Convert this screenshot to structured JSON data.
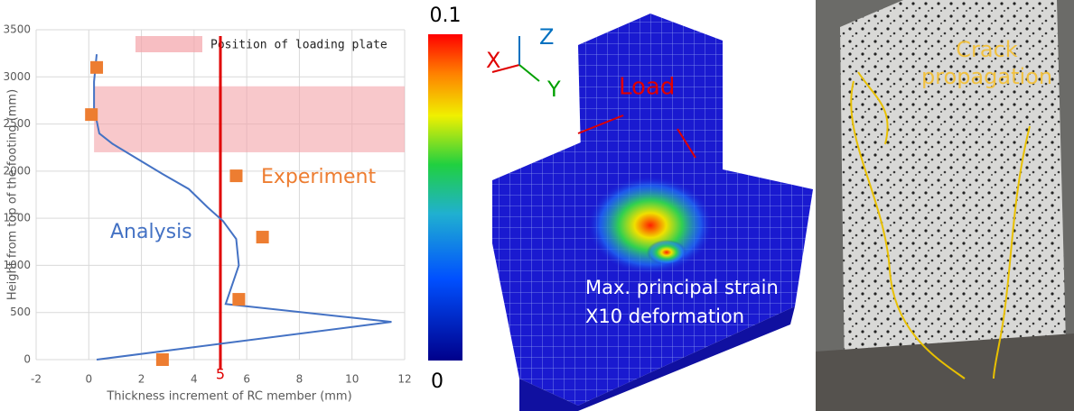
{
  "chart_data": {
    "type": "line",
    "x_label": "Thickness increment of RC member (mm)",
    "y_label": "Height from top of the footing (mm)",
    "xlim": [
      -2,
      12
    ],
    "ylim": [
      0,
      3500
    ],
    "xticks": [
      -2,
      0,
      2,
      4,
      6,
      8,
      10,
      12
    ],
    "yticks": [
      0,
      500,
      1000,
      1500,
      2000,
      2500,
      3000,
      3500
    ],
    "grid": true,
    "series": [
      {
        "name": "Analysis",
        "color": "#4472c4",
        "type": "line",
        "x": [
          0.3,
          11.5,
          5.2,
          5.7,
          5.6,
          5.1,
          4.5,
          3.8,
          2.8,
          0.9,
          0.4,
          0.2,
          0.2,
          0.3
        ],
        "values": [
          0,
          400,
          590,
          1000,
          1280,
          1470,
          1620,
          1810,
          1970,
          2290,
          2400,
          2670,
          2950,
          3240
        ]
      },
      {
        "name": "Experiment",
        "color": "#ed7d31",
        "type": "scatter",
        "x": [
          0.3,
          0.1,
          5.6,
          6.6,
          5.7,
          2.8
        ],
        "values": [
          3100,
          2600,
          1950,
          1300,
          640,
          0
        ]
      }
    ],
    "band": {
      "label": "Position of loading plate",
      "color": "#f4a3a8",
      "x": [
        0.2,
        12
      ],
      "y": [
        2200,
        2900
      ]
    },
    "vline": {
      "x": 5,
      "color": "#e00000"
    }
  },
  "fem": {
    "axes": [
      "Z",
      "X",
      "Y"
    ],
    "load": "Load",
    "caption": [
      "Max. principal strain",
      "X10 deformation"
    ],
    "colorbar": {
      "max": 0.1,
      "min": 0
    }
  },
  "photo": {
    "caption": "Crack propagation"
  }
}
